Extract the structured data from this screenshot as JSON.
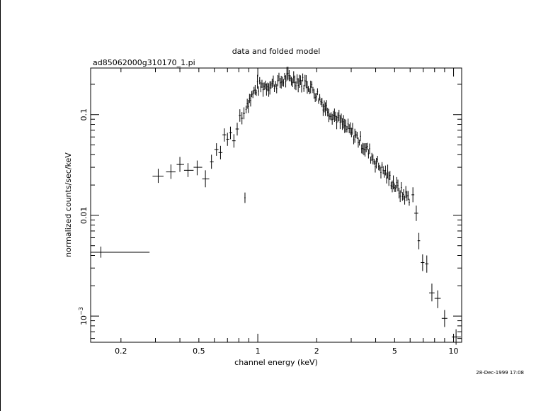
{
  "chart_data": {
    "type": "scatter",
    "title": "data and folded model",
    "subtitle": "ad85062000g310170_1.pi",
    "xlabel": "channel energy (keV)",
    "ylabel": "normalized counts/sec/keV",
    "timestamp": "28-Dec-1999 17:08",
    "xscale": "log",
    "yscale": "log",
    "xlim": [
      0.14,
      11.0
    ],
    "ylim": [
      0.00055,
      0.29
    ],
    "grid": false,
    "x_ticks": [
      {
        "value": 0.2,
        "label": "0.2"
      },
      {
        "value": 0.5,
        "label": "0.5"
      },
      {
        "value": 1,
        "label": "1"
      },
      {
        "value": 2,
        "label": "2"
      },
      {
        "value": 5,
        "label": "5"
      },
      {
        "value": 10,
        "label": "10"
      }
    ],
    "y_ticks": [
      {
        "value": 0.1,
        "label": "0.1"
      },
      {
        "value": 0.01,
        "label": "0.01"
      },
      {
        "value": 0.001,
        "label": "10",
        "exponent": "−3"
      }
    ],
    "series": [
      {
        "points": [
          {
            "x": 0.158,
            "xlo": 0.14,
            "xhi": 0.28,
            "y": 0.0043,
            "ylo": 0.0038,
            "yhi": 0.0049
          },
          {
            "x": 0.31,
            "xlo": 0.29,
            "xhi": 0.33,
            "y": 0.0245,
            "ylo": 0.021,
            "yhi": 0.029
          },
          {
            "x": 0.36,
            "xlo": 0.34,
            "xhi": 0.38,
            "y": 0.027,
            "ylo": 0.023,
            "yhi": 0.032
          },
          {
            "x": 0.4,
            "xlo": 0.385,
            "xhi": 0.42,
            "y": 0.032,
            "ylo": 0.027,
            "yhi": 0.038
          },
          {
            "x": 0.44,
            "xlo": 0.42,
            "xhi": 0.47,
            "y": 0.028,
            "ylo": 0.024,
            "yhi": 0.033
          },
          {
            "x": 0.49,
            "xlo": 0.47,
            "xhi": 0.52,
            "y": 0.03,
            "ylo": 0.025,
            "yhi": 0.035
          },
          {
            "x": 0.54,
            "xlo": 0.52,
            "xhi": 0.565,
            "y": 0.023,
            "ylo": 0.019,
            "yhi": 0.028
          },
          {
            "x": 0.58,
            "xlo": 0.57,
            "xhi": 0.595,
            "y": 0.034,
            "ylo": 0.029,
            "yhi": 0.04
          },
          {
            "x": 0.615,
            "xlo": 0.6,
            "xhi": 0.63,
            "y": 0.045,
            "ylo": 0.039,
            "yhi": 0.052
          },
          {
            "x": 0.645,
            "xlo": 0.63,
            "xhi": 0.66,
            "y": 0.042,
            "ylo": 0.036,
            "yhi": 0.049
          },
          {
            "x": 0.675,
            "xlo": 0.66,
            "xhi": 0.69,
            "y": 0.063,
            "ylo": 0.054,
            "yhi": 0.073
          },
          {
            "x": 0.7,
            "xlo": 0.69,
            "xhi": 0.715,
            "y": 0.057,
            "ylo": 0.049,
            "yhi": 0.066
          },
          {
            "x": 0.725,
            "xlo": 0.715,
            "xhi": 0.74,
            "y": 0.066,
            "ylo": 0.057,
            "yhi": 0.076
          },
          {
            "x": 0.755,
            "xlo": 0.74,
            "xhi": 0.77,
            "y": 0.055,
            "ylo": 0.047,
            "yhi": 0.064
          },
          {
            "x": 0.785,
            "xlo": 0.77,
            "xhi": 0.8,
            "y": 0.072,
            "ylo": 0.062,
            "yhi": 0.083
          },
          {
            "x": 0.81,
            "xlo": 0.8,
            "xhi": 0.82,
            "y": 0.098,
            "ylo": 0.085,
            "yhi": 0.113
          },
          {
            "x": 0.83,
            "xlo": 0.82,
            "xhi": 0.84,
            "y": 0.092,
            "ylo": 0.08,
            "yhi": 0.106
          },
          {
            "x": 0.85,
            "xlo": 0.84,
            "xhi": 0.86,
            "y": 0.103,
            "ylo": 0.09,
            "yhi": 0.118
          },
          {
            "x": 6.2,
            "xlo": 6.1,
            "xhi": 6.3,
            "y": 0.016,
            "ylo": 0.0135,
            "yhi": 0.019
          },
          {
            "x": 6.45,
            "xlo": 6.3,
            "xhi": 6.6,
            "y": 0.0105,
            "ylo": 0.0088,
            "yhi": 0.0125
          },
          {
            "x": 6.65,
            "xlo": 6.55,
            "xhi": 6.75,
            "y": 0.0056,
            "ylo": 0.0046,
            "yhi": 0.0067
          },
          {
            "x": 6.95,
            "xlo": 6.8,
            "xhi": 7.1,
            "y": 0.0034,
            "ylo": 0.0028,
            "yhi": 0.0041
          },
          {
            "x": 7.3,
            "xlo": 7.15,
            "xhi": 7.45,
            "y": 0.0033,
            "ylo": 0.0027,
            "yhi": 0.004
          },
          {
            "x": 7.75,
            "xlo": 7.5,
            "xhi": 8.0,
            "y": 0.0017,
            "ylo": 0.0014,
            "yhi": 0.0021
          },
          {
            "x": 8.3,
            "xlo": 8.0,
            "xhi": 8.6,
            "y": 0.0015,
            "ylo": 0.0012,
            "yhi": 0.0018
          },
          {
            "x": 9.0,
            "xlo": 8.7,
            "xhi": 9.3,
            "y": 0.00095,
            "ylo": 0.00078,
            "yhi": 0.00115
          },
          {
            "x": 10.3,
            "xlo": 9.8,
            "xhi": 10.9,
            "y": 0.00062,
            "ylo": 0.00052,
            "yhi": 0.00074
          }
        ],
        "dense_segments": [
          {
            "x": [
              0.86,
              1.0,
              1.2,
              1.3,
              1.4,
              1.6,
              1.8,
              2.0,
              2.2,
              2.5,
              2.8,
              3.2,
              3.6,
              4.0,
              4.5,
              5.0,
              5.5,
              6.0
            ],
            "y": [
              0.12,
              0.19,
              0.2,
              0.21,
              0.23,
              0.22,
              0.2,
              0.16,
              0.12,
              0.095,
              0.075,
              0.06,
              0.045,
              0.034,
              0.026,
              0.02,
              0.016,
              0.015
            ]
          }
        ]
      }
    ]
  }
}
